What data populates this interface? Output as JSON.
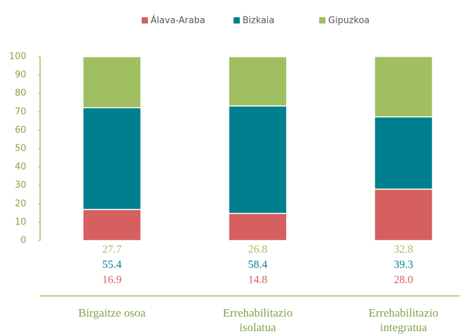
{
  "chart_data": {
    "type": "stacked_bar",
    "categories": [
      "Birgaitze osoa",
      "Errehabilitazio isolatua",
      "Errehabilitazio integratua"
    ],
    "series": [
      {
        "name": "Álava-Araba",
        "color": "#d65f5f",
        "values": [
          16.9,
          14.8,
          28.0
        ],
        "value_labels": [
          "16.9",
          "14.8",
          "28.0"
        ]
      },
      {
        "name": "Bizkaia",
        "color": "#00808f",
        "values": [
          55.4,
          58.4,
          39.3
        ],
        "value_labels": [
          "55.4",
          "58.4",
          "39.3"
        ]
      },
      {
        "name": "Gipuzkoa",
        "color": "#9fbf60",
        "values": [
          27.7,
          26.8,
          32.8
        ],
        "value_labels": [
          "27.7",
          "26.8",
          "32.8"
        ]
      }
    ],
    "ylim": [
      0,
      100
    ],
    "yticks": [
      0,
      10,
      20,
      30,
      40,
      50,
      60,
      70,
      80,
      90,
      100
    ],
    "legend": "top"
  }
}
